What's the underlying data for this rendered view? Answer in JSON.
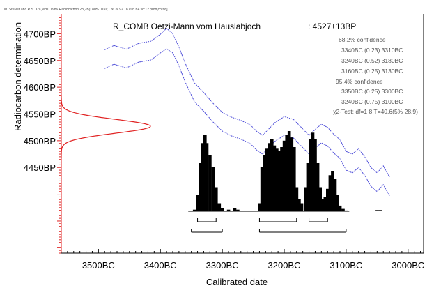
{
  "header": {
    "credit": "M. Stuiver and R.S. Kra, eds. 1986 Radiocarbon 28(2B); 805-1030; OxCal v2.18 cub r:4 sd:12 prob[chron]",
    "sample": "R_COMB Oetzi-Mann vom Hauslabjoch",
    "date": ": 4527±13BP"
  },
  "confidence": {
    "lines": [
      "68.2% confidence",
      "3340BC (0.23) 3310BC",
      "3240BC (0.52) 3180BC",
      "3160BC (0.25) 3130BC",
      "95.4% confidence",
      "3350BC (0.25) 3300BC",
      "3240BC (0.75) 3100BC",
      "χ2-Test: df=1 8 T=40.6(5% 28.9)"
    ]
  },
  "chart_data": {
    "type": "area",
    "xlabel": "Calibrated date",
    "ylabel": "Radiocarbon determination",
    "x_ticks": [
      "3500BC",
      "3400BC",
      "3300BC",
      "3200BC",
      "3100BC",
      "3000BC"
    ],
    "x_tick_values": [
      3500,
      3400,
      3300,
      3200,
      3100,
      3000
    ],
    "y_ticks": [
      "4700BP",
      "4650BP",
      "4600BP",
      "4550BP",
      "4500BP",
      "4450BP"
    ],
    "y_tick_values": [
      4700,
      4650,
      4600,
      4550,
      4500,
      4450
    ],
    "xlim": [
      3560,
      2975
    ],
    "ylim": [
      4290,
      4737
    ],
    "colors": {
      "calibration_curve": "#4b4bd8",
      "measurement": "#e02020",
      "axis": "#e02020",
      "distribution": "#000000"
    },
    "measurement": {
      "mean": 4527,
      "sd": 13
    },
    "calibration_curve": {
      "upper": [
        [
          3490,
          4670
        ],
        [
          3475,
          4678
        ],
        [
          3455,
          4671
        ],
        [
          3435,
          4682
        ],
        [
          3415,
          4686
        ],
        [
          3400,
          4699
        ],
        [
          3390,
          4710
        ],
        [
          3380,
          4700
        ],
        [
          3370,
          4675
        ],
        [
          3360,
          4645
        ],
        [
          3345,
          4608
        ],
        [
          3330,
          4590
        ],
        [
          3315,
          4570
        ],
        [
          3300,
          4553
        ],
        [
          3285,
          4544
        ],
        [
          3270,
          4538
        ],
        [
          3255,
          4530
        ],
        [
          3245,
          4518
        ],
        [
          3235,
          4510
        ],
        [
          3225,
          4522
        ],
        [
          3215,
          4534
        ],
        [
          3200,
          4545
        ],
        [
          3185,
          4540
        ],
        [
          3170,
          4522
        ],
        [
          3160,
          4510
        ],
        [
          3150,
          4521
        ],
        [
          3140,
          4531
        ],
        [
          3130,
          4525
        ],
        [
          3120,
          4512
        ],
        [
          3110,
          4502
        ],
        [
          3100,
          4480
        ],
        [
          3090,
          4475
        ],
        [
          3080,
          4485
        ],
        [
          3070,
          4470
        ],
        [
          3060,
          4450
        ],
        [
          3050,
          4440
        ],
        [
          3040,
          4453
        ],
        [
          3030,
          4432
        ]
      ],
      "lower": [
        [
          3490,
          4635
        ],
        [
          3475,
          4643
        ],
        [
          3455,
          4636
        ],
        [
          3435,
          4647
        ],
        [
          3415,
          4651
        ],
        [
          3400,
          4664
        ],
        [
          3390,
          4672
        ],
        [
          3380,
          4664
        ],
        [
          3370,
          4640
        ],
        [
          3360,
          4610
        ],
        [
          3345,
          4573
        ],
        [
          3330,
          4555
        ],
        [
          3315,
          4535
        ],
        [
          3300,
          4518
        ],
        [
          3285,
          4509
        ],
        [
          3270,
          4503
        ],
        [
          3255,
          4495
        ],
        [
          3245,
          4483
        ],
        [
          3235,
          4475
        ],
        [
          3225,
          4487
        ],
        [
          3215,
          4499
        ],
        [
          3200,
          4510
        ],
        [
          3185,
          4505
        ],
        [
          3170,
          4487
        ],
        [
          3160,
          4475
        ],
        [
          3150,
          4486
        ],
        [
          3140,
          4496
        ],
        [
          3130,
          4490
        ],
        [
          3120,
          4477
        ],
        [
          3110,
          4467
        ],
        [
          3100,
          4445
        ],
        [
          3090,
          4440
        ],
        [
          3080,
          4450
        ],
        [
          3070,
          4435
        ],
        [
          3060,
          4415
        ],
        [
          3050,
          4405
        ],
        [
          3040,
          4418
        ],
        [
          3030,
          4397
        ]
      ]
    },
    "distribution": [
      [
        3345,
        0.02
      ],
      [
        3340,
        0.2
      ],
      [
        3335,
        0.6
      ],
      [
        3332,
        0.85
      ],
      [
        3328,
        0.95
      ],
      [
        3325,
        0.85
      ],
      [
        3320,
        0.7
      ],
      [
        3315,
        0.55
      ],
      [
        3310,
        0.3
      ],
      [
        3305,
        0.1
      ],
      [
        3300,
        0.04
      ],
      [
        3290,
        0.02
      ],
      [
        3280,
        0.04
      ],
      [
        3275,
        0.02
      ],
      [
        3240,
        0.1
      ],
      [
        3236,
        0.55
      ],
      [
        3232,
        0.7
      ],
      [
        3228,
        0.78
      ],
      [
        3224,
        0.85
      ],
      [
        3220,
        0.9
      ],
      [
        3216,
        0.82
      ],
      [
        3212,
        0.78
      ],
      [
        3208,
        0.75
      ],
      [
        3204,
        0.8
      ],
      [
        3200,
        0.88
      ],
      [
        3196,
        0.95
      ],
      [
        3192,
        1.0
      ],
      [
        3188,
        0.92
      ],
      [
        3184,
        0.8
      ],
      [
        3180,
        0.3
      ],
      [
        3176,
        0.15
      ],
      [
        3172,
        0.1
      ],
      [
        3166,
        0.3
      ],
      [
        3162,
        0.6
      ],
      [
        3158,
        0.9
      ],
      [
        3154,
        0.98
      ],
      [
        3150,
        0.9
      ],
      [
        3146,
        0.6
      ],
      [
        3142,
        0.3
      ],
      [
        3138,
        0.15
      ],
      [
        3134,
        0.18
      ],
      [
        3130,
        0.28
      ],
      [
        3126,
        0.45
      ],
      [
        3122,
        0.5
      ],
      [
        3118,
        0.4
      ],
      [
        3114,
        0.2
      ],
      [
        3110,
        0.07
      ],
      [
        3105,
        0.03
      ],
      [
        3100,
        0.01
      ],
      [
        3050,
        0.015
      ],
      [
        3045,
        0.015
      ]
    ],
    "ranges_68": [
      [
        3340,
        3310
      ],
      [
        3240,
        3180
      ],
      [
        3160,
        3130
      ]
    ],
    "ranges_95": [
      [
        3350,
        3300
      ],
      [
        3240,
        3100
      ]
    ]
  }
}
